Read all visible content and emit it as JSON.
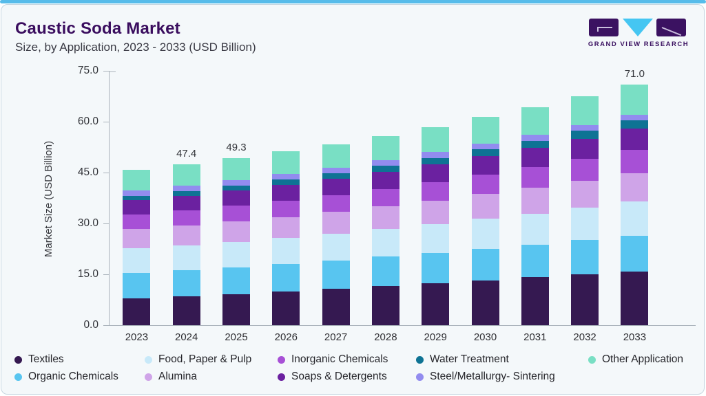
{
  "header": {
    "title": "Caustic Soda Market",
    "subtitle": "Size, by Application, 2023 - 2033 (USD Billion)"
  },
  "logo": {
    "text": "GRAND VIEW RESEARCH",
    "mark_color": "#3b1261",
    "triangle_color": "#45c6f2"
  },
  "brand": {
    "top_stripe_color": "#57bcea",
    "title_color": "#3a0d5e",
    "card_background": "#f4f8fa",
    "card_border": "#c6d6e0",
    "axis_color": "#a9b2ba"
  },
  "chart_data": {
    "type": "bar",
    "stacked": true,
    "title": "Caustic Soda Market",
    "subtitle": "Size, by Application, 2023 - 2033 (USD Billion)",
    "xlabel": "",
    "ylabel": "Market Size (USD Billion)",
    "ylim": [
      0,
      75
    ],
    "yticks": [
      0,
      15,
      30,
      45,
      60,
      75
    ],
    "grid": false,
    "legend_position": "bottom",
    "categories": [
      "2023",
      "2024",
      "2025",
      "2026",
      "2027",
      "2028",
      "2029",
      "2030",
      "2031",
      "2032",
      "2033"
    ],
    "stack_order": "bottom_to_top",
    "series": [
      {
        "name": "Textiles",
        "color": "#351951",
        "values": [
          7.9,
          8.5,
          9.2,
          9.9,
          10.7,
          11.5,
          12.3,
          13.2,
          14.1,
          15.0,
          15.9
        ]
      },
      {
        "name": "Organic Chemicals",
        "color": "#58c5f0",
        "values": [
          7.6,
          7.7,
          7.9,
          8.1,
          8.4,
          8.7,
          9.0,
          9.4,
          9.7,
          10.1,
          10.5
        ]
      },
      {
        "name": "Food, Paper & Pulp",
        "color": "#c8e9f9",
        "values": [
          7.2,
          7.3,
          7.5,
          7.7,
          7.9,
          8.1,
          8.4,
          8.8,
          9.1,
          9.5,
          10.1
        ]
      },
      {
        "name": "Alumina",
        "color": "#cfa4e8",
        "values": [
          5.6,
          5.8,
          6.0,
          6.2,
          6.4,
          6.7,
          7.0,
          7.3,
          7.7,
          8.0,
          8.4
        ]
      },
      {
        "name": "Inorganic Chemicals",
        "color": "#a750d6",
        "values": [
          4.3,
          4.5,
          4.6,
          4.8,
          5.0,
          5.2,
          5.5,
          5.7,
          6.0,
          6.4,
          6.8
        ]
      },
      {
        "name": "Soaps & Detergents",
        "color": "#6b21a0",
        "values": [
          4.3,
          4.4,
          4.5,
          4.7,
          4.8,
          5.0,
          5.2,
          5.4,
          5.7,
          6.0,
          6.3
        ]
      },
      {
        "name": "Water Treatment",
        "color": "#0e7394",
        "values": [
          1.3,
          1.4,
          1.5,
          1.6,
          1.7,
          1.8,
          1.9,
          2.1,
          2.1,
          2.3,
          2.4
        ]
      },
      {
        "name": "Steel/Metallurgy- Sintering",
        "color": "#928cef",
        "values": [
          1.6,
          1.6,
          1.6,
          1.6,
          1.6,
          1.6,
          1.7,
          1.7,
          1.7,
          1.7,
          1.7
        ]
      },
      {
        "name": "Other Application",
        "color": "#79dfc4",
        "values": [
          6.1,
          6.2,
          6.5,
          6.7,
          6.8,
          7.2,
          7.4,
          7.8,
          8.2,
          8.6,
          8.9
        ]
      }
    ],
    "totals_labels": {
      "2024": "47.4",
      "2025": "49.3",
      "2033": "71.0"
    },
    "legend_rows": [
      [
        "Textiles",
        "Food, Paper & Pulp",
        "Inorganic Chemicals",
        "Water Treatment",
        "Other Application"
      ],
      [
        "Organic Chemicals",
        "Alumina",
        "Soaps & Detergents",
        "Steel/Metallurgy- Sintering"
      ]
    ]
  }
}
